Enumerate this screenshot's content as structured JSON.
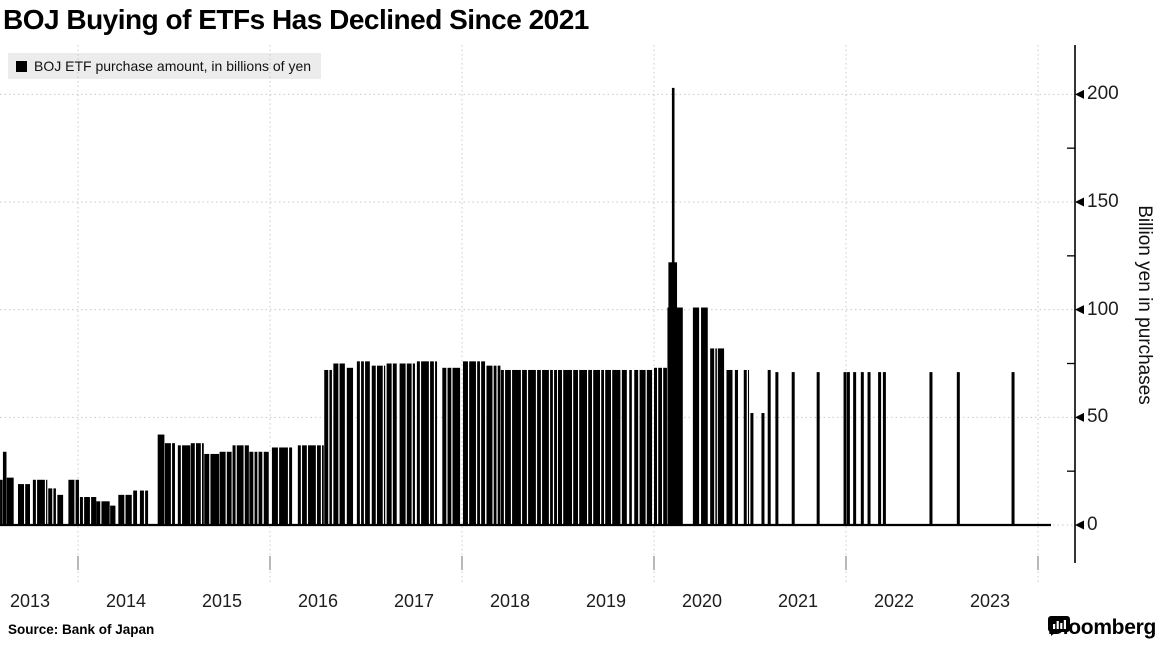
{
  "title": "BOJ Buying of ETFs Has Declined Since 2021",
  "legend": {
    "label": "BOJ ETF purchase amount, in billions of yen",
    "swatch_color": "#000000"
  },
  "source": {
    "label": "Source: Bank of Japan"
  },
  "brand": {
    "name": "Bloomberg",
    "icon": "bloomberg-chart-bubble-icon"
  },
  "chart_data": {
    "type": "bar",
    "title": "BOJ Buying of ETFs Has Declined Since 2021",
    "series_name": "BOJ ETF purchase amount",
    "unit": "billions of yen",
    "ylabel": "Billion yen in purchases",
    "xlabel": "",
    "grid": "dotted",
    "legend_position": "top-left",
    "bar_color": "#000000",
    "gridline_color": "#c9c9c9",
    "x_axis": {
      "tick_labels": [
        "2013",
        "2014",
        "2015",
        "2016",
        "2017",
        "2018",
        "2019",
        "2020",
        "2021",
        "2022",
        "2023"
      ],
      "tick_years": [
        2013,
        2014,
        2015,
        2016,
        2017,
        2018,
        2019,
        2020,
        2021,
        2022,
        2023
      ],
      "gridline_years": [
        2014,
        2016,
        2018,
        2020,
        2022,
        2024
      ],
      "range": [
        2013.19,
        2024.39
      ]
    },
    "y_axis": {
      "ticks": [
        0,
        50,
        100,
        150,
        200
      ],
      "minor_ticks": [
        25,
        75,
        125,
        175
      ],
      "range": [
        0,
        210
      ],
      "side": "right"
    },
    "peak": {
      "x": 2020.2,
      "value": 203
    },
    "segments_note": "contiguous runs of near-daily purchases: [startYear, endYear, billionsOfYen]",
    "segments": [
      [
        2013.188,
        2013.215,
        21
      ],
      [
        2013.218,
        2013.255,
        34
      ],
      [
        2013.258,
        2013.33,
        22
      ],
      [
        2013.375,
        2013.5,
        19
      ],
      [
        2013.53,
        2013.68,
        21
      ],
      [
        2013.69,
        2013.77,
        17
      ],
      [
        2013.785,
        2013.845,
        14
      ],
      [
        2013.9,
        2014.01,
        21
      ],
      [
        2014.02,
        2014.19,
        13
      ],
      [
        2014.19,
        2014.33,
        11
      ],
      [
        2014.335,
        2014.39,
        9
      ],
      [
        2014.42,
        2014.56,
        14
      ],
      [
        2014.575,
        2014.615,
        16
      ],
      [
        2014.645,
        2014.73,
        16
      ],
      [
        2014.83,
        2014.9,
        42
      ],
      [
        2014.905,
        2015.01,
        38
      ],
      [
        2015.04,
        2015.17,
        37
      ],
      [
        2015.175,
        2015.31,
        38
      ],
      [
        2015.315,
        2015.47,
        33
      ],
      [
        2015.475,
        2015.6,
        34
      ],
      [
        2015.61,
        2015.78,
        37
      ],
      [
        2015.785,
        2015.92,
        34
      ],
      [
        2015.935,
        2016.01,
        34
      ],
      [
        2016.02,
        2016.23,
        36
      ],
      [
        2016.29,
        2016.56,
        37
      ],
      [
        2016.565,
        2016.645,
        72
      ],
      [
        2016.66,
        2016.78,
        75
      ],
      [
        2016.8,
        2016.865,
        73
      ],
      [
        2016.905,
        2017.04,
        76
      ],
      [
        2017.06,
        2017.2,
        74
      ],
      [
        2017.215,
        2017.32,
        75
      ],
      [
        2017.35,
        2017.51,
        75
      ],
      [
        2017.53,
        2017.74,
        76
      ],
      [
        2017.795,
        2017.98,
        73
      ],
      [
        2018.01,
        2018.24,
        76
      ],
      [
        2018.255,
        2018.4,
        74
      ],
      [
        2018.405,
        2018.99,
        72
      ],
      [
        2019.0,
        2019.65,
        72
      ],
      [
        2019.665,
        2019.835,
        72
      ],
      [
        2019.85,
        2019.98,
        72
      ],
      [
        2020.0,
        2020.135,
        73
      ],
      [
        2020.14,
        2020.3,
        101
      ],
      [
        2020.15,
        2020.24,
        122
      ],
      [
        2020.405,
        2020.47,
        101
      ],
      [
        2020.49,
        2020.56,
        101
      ],
      [
        2020.585,
        2020.655,
        82
      ],
      [
        2020.665,
        2020.73,
        82
      ],
      [
        2020.755,
        2020.875,
        72
      ],
      [
        2020.935,
        2020.99,
        72
      ]
    ],
    "sparse_segment_indices": [
      22,
      38,
      47
    ],
    "single_bars_note": "isolated purchase days: [year, billionsOfYen]",
    "single_bars": [
      [
        2020.2,
        203
      ],
      [
        2021.02,
        52
      ],
      [
        2021.135,
        52
      ],
      [
        2021.2,
        72
      ],
      [
        2021.28,
        71
      ],
      [
        2021.45,
        71
      ],
      [
        2021.71,
        71
      ],
      [
        2021.99,
        71
      ],
      [
        2022.025,
        71
      ],
      [
        2022.09,
        71
      ],
      [
        2022.17,
        71
      ],
      [
        2022.24,
        71
      ],
      [
        2022.35,
        71
      ],
      [
        2022.4,
        71
      ],
      [
        2022.885,
        71
      ],
      [
        2023.17,
        71
      ],
      [
        2023.74,
        71
      ]
    ]
  }
}
